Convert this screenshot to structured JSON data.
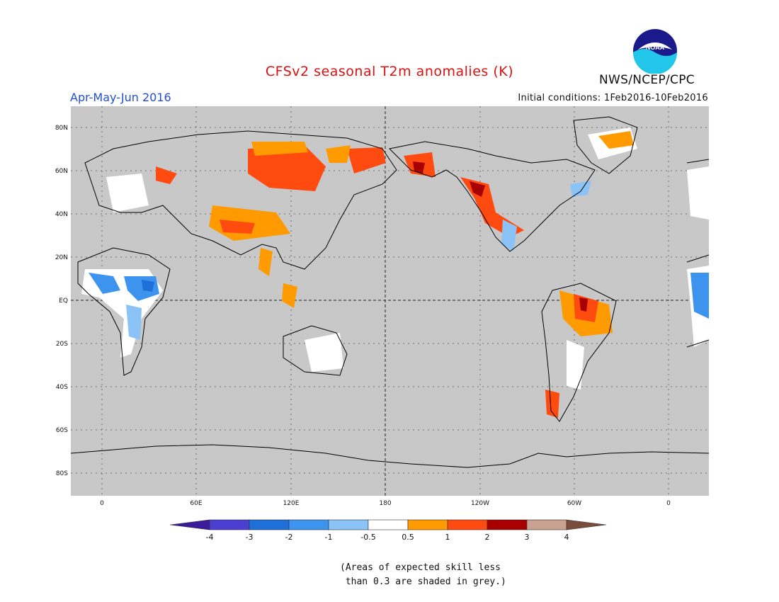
{
  "title": "CFSv2 seasonal T2m anomalies (K)",
  "period": "Apr-May-Jun 2016",
  "initial_conditions": "Initial conditions: 1Feb2016-10Feb2016",
  "org": "NWS/NCEP/CPC",
  "logo_text": "NOAA",
  "lat_labels": [
    "80N",
    "60N",
    "40N",
    "20N",
    "EQ",
    "20S",
    "40S",
    "60S",
    "80S"
  ],
  "lon_labels": [
    "0",
    "60E",
    "120E",
    "180",
    "120W",
    "60W",
    "0"
  ],
  "colorbar": {
    "labels": [
      "-4",
      "-3",
      "-2",
      "-1",
      "-0.5",
      "0.5",
      "1",
      "2",
      "3",
      "4"
    ],
    "colors": [
      "#3a1c9a",
      "#4a3fd0",
      "#1e6fd8",
      "#3d94ee",
      "#8cc3f6",
      "#ffffff",
      "#ff9a00",
      "#ff4a10",
      "#a80000",
      "#caa090",
      "#7a4c3c"
    ]
  },
  "note_line1": "(Areas of expected skill less",
  "note_line2": " than 0.3 are shaded in grey.)"
}
